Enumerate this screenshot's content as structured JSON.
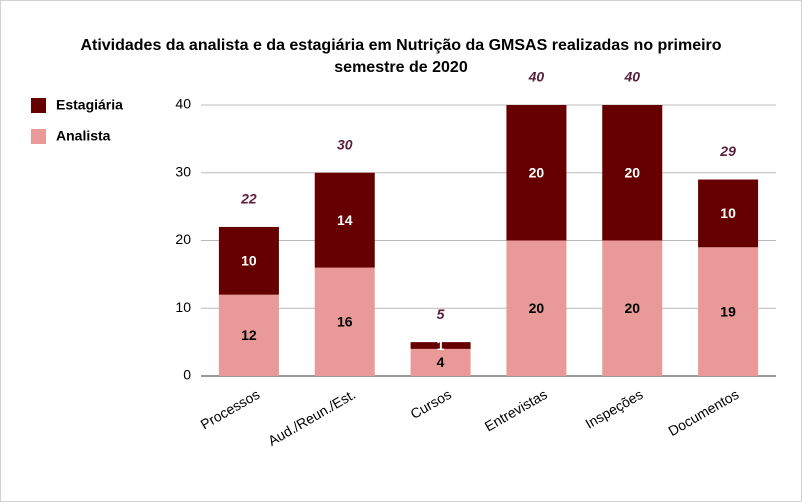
{
  "chart_data": {
    "type": "stacked_bar",
    "title": "Atividades da analista e da estagiária em Nutrição da GMSAS realizadas no primeiro semestre de 2020",
    "categories": [
      "Processos",
      "Aud./Reun./Est.",
      "Cursos",
      "Entrevistas",
      "Inspeções",
      "Documentos"
    ],
    "series": [
      {
        "name": "Analista",
        "color": "#ea9999",
        "values": [
          12,
          16,
          4,
          20,
          20,
          19
        ]
      },
      {
        "name": "Estagiária",
        "color": "#660000",
        "values": [
          10,
          14,
          1,
          20,
          20,
          10
        ]
      }
    ],
    "totals": [
      22,
      30,
      5,
      40,
      40,
      29
    ],
    "ylim": [
      0,
      40
    ],
    "yticks": [
      0,
      10,
      20,
      30,
      40
    ],
    "grid": true,
    "legend": "top-left"
  }
}
